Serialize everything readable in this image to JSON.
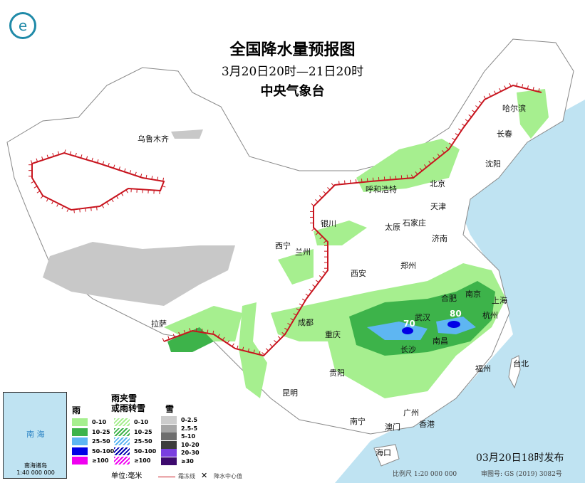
{
  "title": "全国降水量预报图",
  "period": "3月20日20时—21日20时",
  "agency": "中央气象台",
  "cities": [
    "乌鲁木齐",
    "哈尔滨",
    "长春",
    "沈阳",
    "北京",
    "呼和浩特",
    "天津",
    "石家庄",
    "太原",
    "银川",
    "西宁",
    "兰州",
    "济南",
    "郑州",
    "西安",
    "合肥",
    "南京",
    "上海",
    "杭州",
    "武汉",
    "成都",
    "重庆",
    "长沙",
    "南昌",
    "拉萨",
    "贵阳",
    "福州",
    "台北",
    "昆明",
    "南宁",
    "广州",
    "澳门",
    "香港",
    "海口"
  ],
  "rain_center_values": [
    "70",
    "80"
  ],
  "inset": {
    "sea": "南 海",
    "caption": "南海诸岛",
    "scale": "1:40 000 000"
  },
  "legend": {
    "rain": {
      "title": "雨",
      "items": [
        {
          "label": "0-10",
          "color": "#a6ef8f"
        },
        {
          "label": "10-25",
          "color": "#3db34a"
        },
        {
          "label": "25-50",
          "color": "#5eb6f2"
        },
        {
          "label": "50-100",
          "color": "#0000e6"
        },
        {
          "label": "≥100",
          "color": "#f000f0"
        }
      ]
    },
    "mixed": {
      "title1": "雨夹雪",
      "title2": "或雨转雪",
      "items": [
        {
          "label": "0-10",
          "color": "#a6ef8f"
        },
        {
          "label": "10-25",
          "color": "#3db34a"
        },
        {
          "label": "25-50",
          "color": "#5eb6f2"
        },
        {
          "label": "50-100",
          "color": "#0000b0"
        },
        {
          "label": "≥100",
          "color": "#f000f0"
        }
      ]
    },
    "snow": {
      "title": "雪",
      "items": [
        {
          "label": "0-2.5",
          "color": "#cccccc"
        },
        {
          "label": "2.5-5",
          "color": "#a6a6a6"
        },
        {
          "label": "5-10",
          "color": "#6e6e6e"
        },
        {
          "label": "10-20",
          "color": "#3c3c3c"
        },
        {
          "label": "20-30",
          "color": "#7a3fe0"
        },
        {
          "label": "≥30",
          "color": "#3d0a6e"
        }
      ]
    },
    "unit": "单位:毫米",
    "frost_line": "霜冻线",
    "center_mark": "降水中心值"
  },
  "issued": "03月20日18时发布",
  "scale": "比例尺 1:20 000 000",
  "map_no": "审图号: GS (2019) 3082号"
}
